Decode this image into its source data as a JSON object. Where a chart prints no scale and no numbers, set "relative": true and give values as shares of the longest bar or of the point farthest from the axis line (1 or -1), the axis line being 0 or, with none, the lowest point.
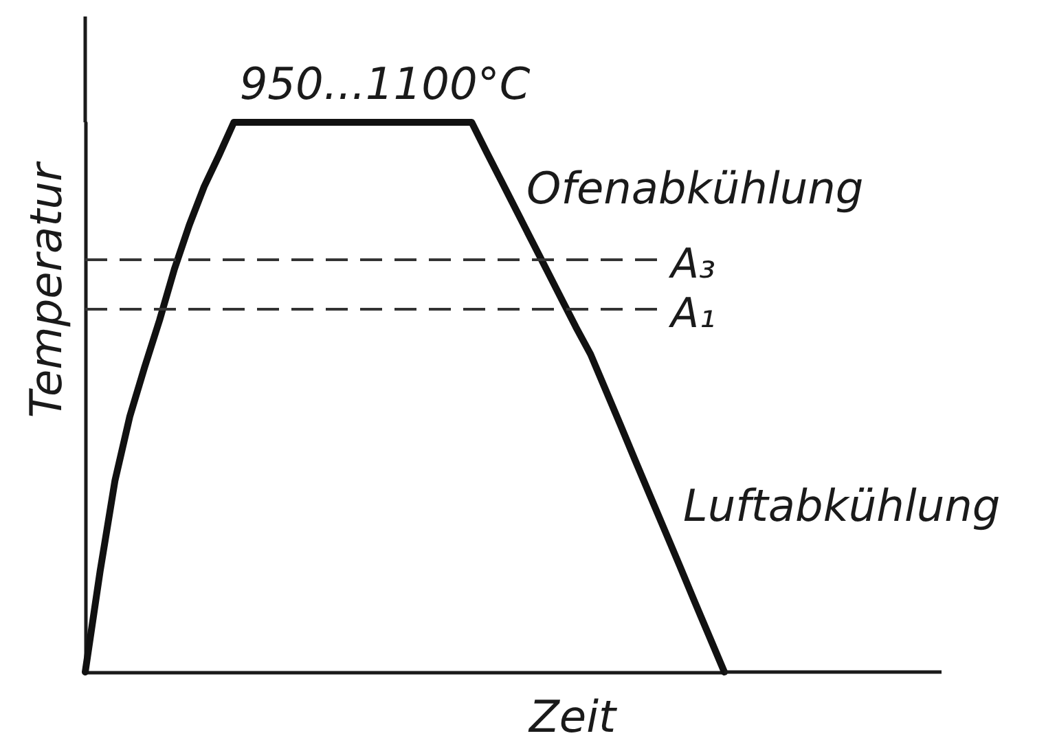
{
  "chart_data": {
    "type": "line",
    "relative": true,
    "xlabel": "Zeit",
    "ylabel": "Temperatur",
    "categories": [
      null,
      null,
      null,
      null,
      null,
      null,
      null,
      null,
      null,
      null,
      null,
      null,
      null,
      null,
      null,
      null,
      null,
      null,
      null,
      null,
      null,
      null,
      null,
      null,
      null,
      null,
      null,
      null,
      null,
      null,
      null,
      null,
      null,
      null,
      null,
      null,
      null,
      null,
      null,
      null,
      null,
      null,
      null,
      null
    ],
    "series": [
      {
        "color": "#111111",
        "values": [
          0,
          0.183,
          0.348,
          0.465,
          0.555,
          0.64,
          0.733,
          0.813,
          0.883,
          0.94,
          1,
          1,
          1,
          1,
          1,
          1,
          1,
          1,
          1,
          1,
          1,
          1,
          1,
          1,
          1,
          1,
          1,
          0.946,
          0.893,
          0.84,
          0.787,
          0.734,
          0.681,
          0.628,
          0.578,
          0.514,
          0.45,
          0.385,
          0.321,
          0.257,
          0.193,
          0.128,
          0.064,
          0
        ]
      }
    ],
    "ref_lines": [
      {
        "axis": "y",
        "value": 0.75,
        "label": "A₃",
        "line_style": "dashed",
        "color": "#333333"
      },
      {
        "axis": "y",
        "value": 0.66,
        "label": "A₁",
        "line_style": "dashed",
        "color": "#333333"
      }
    ],
    "annotations": [
      "950...1100°C",
      "Ofenabkühlung",
      "Luftabkühlung"
    ],
    "grid": false
  }
}
